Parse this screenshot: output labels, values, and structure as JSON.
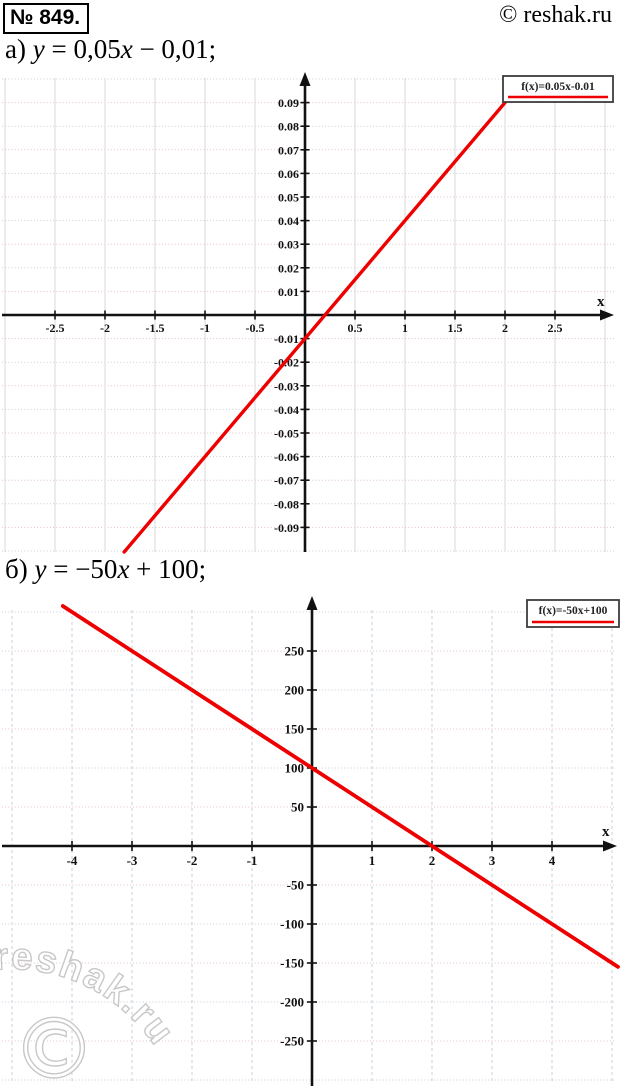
{
  "header": {
    "problem_number": "№ 849.",
    "copyright": "© reshak.ru"
  },
  "equations": {
    "a": {
      "parts": [
        {
          "text": "а) ",
          "italic": false
        },
        {
          "text": "y",
          "italic": true
        },
        {
          "text": " = 0,05",
          "italic": false
        },
        {
          "text": "x",
          "italic": true
        },
        {
          "text": " − 0,01;",
          "italic": false
        }
      ]
    },
    "b": {
      "parts": [
        {
          "text": "б) ",
          "italic": false
        },
        {
          "text": "y",
          "italic": true
        },
        {
          "text": " = −50",
          "italic": false
        },
        {
          "text": "x",
          "italic": true
        },
        {
          "text": " + 100;",
          "italic": false
        }
      ]
    }
  },
  "watermark": {
    "text": "reshak.ru",
    "symbol": "©"
  },
  "colors": {
    "line_red": "#ee0000",
    "axis_black": "#111111",
    "grid_pink": "#e2c4c4",
    "grid_blue": "#c6d0d8",
    "grid_gray": "#d8d8d8"
  },
  "chart_data": [
    {
      "id": "a",
      "type": "line",
      "equation": "y = 0.05x − 0.01",
      "legend": "f(x)=0.05x-0.01",
      "slope": 0.05,
      "intercept": -0.01,
      "x_intercept": 0.2,
      "y_intercept": -0.01,
      "xlabel": "x",
      "xlim": [
        -3,
        3
      ],
      "ylim": [
        -0.1,
        0.1
      ],
      "grid": true,
      "legend_position": "top-right",
      "line_color": "#ee0000",
      "x_tick_values": [
        -2.5,
        -2,
        -1.5,
        -1,
        -0.5,
        0.5,
        1,
        1.5,
        2,
        2.5
      ],
      "x_tick_labels": [
        "-2.5",
        "-2",
        "-1.5",
        "-1",
        "-0.5",
        "0.5",
        "1",
        "1.5",
        "2",
        "2.5"
      ],
      "y_tick_values": [
        0.09,
        0.08,
        0.07,
        0.06,
        0.05,
        0.04,
        0.03,
        0.02,
        0.01,
        -0.01,
        -0.02,
        -0.03,
        -0.04,
        -0.05,
        -0.06,
        -0.07,
        -0.08,
        -0.09
      ],
      "y_tick_labels": [
        "0.09",
        "0.08",
        "0.07",
        "0.06",
        "0.05",
        "0.04",
        "0.03",
        "0.02",
        "0.01",
        "-0.01",
        "-0.02",
        "-0.03",
        "-0.04",
        "-0.05",
        "-0.06",
        "-0.07",
        "-0.08",
        "-0.09"
      ]
    },
    {
      "id": "b",
      "type": "line",
      "equation": "y = −50x + 100",
      "legend": "f(x)=-50x+100",
      "slope": -50,
      "intercept": 100,
      "x_intercept": 2,
      "y_intercept": 100,
      "xlabel": "x",
      "xlim": [
        -5,
        5
      ],
      "ylim": [
        -300,
        300
      ],
      "grid": true,
      "legend_position": "top-right",
      "line_color": "#ee0000",
      "x_tick_values": [
        -4,
        -3,
        -2,
        -1,
        1,
        2,
        3,
        4
      ],
      "x_tick_labels": [
        "-4",
        "-3",
        "-2",
        "-1",
        "1",
        "2",
        "3",
        "4"
      ],
      "y_tick_values": [
        250,
        200,
        150,
        100,
        50,
        -50,
        -100,
        -150,
        -200,
        -250
      ],
      "y_tick_labels": [
        "250",
        "200",
        "150",
        "100",
        "50",
        "-50",
        "-100",
        "-150",
        "-200",
        "-250"
      ]
    }
  ]
}
